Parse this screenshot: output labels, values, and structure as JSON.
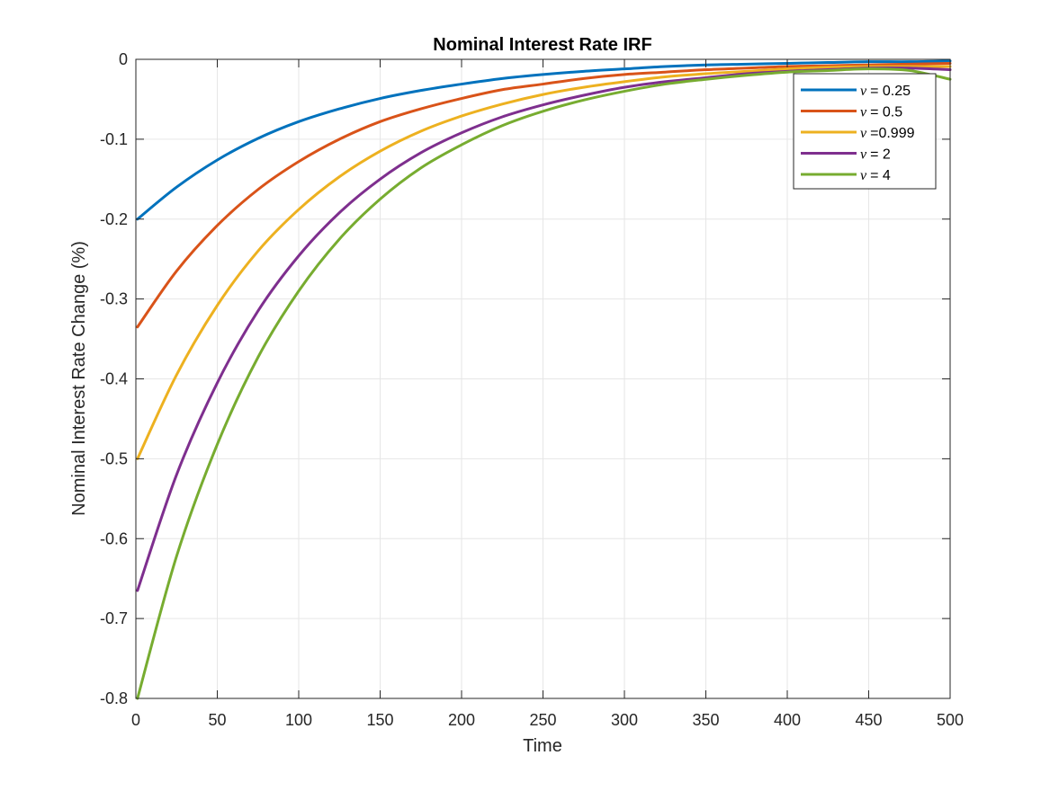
{
  "chart_data": {
    "type": "line",
    "title": "Nominal Interest Rate IRF",
    "xlabel": "Time",
    "ylabel": "Nominal Interest Rate Change (%)",
    "xlim": [
      0,
      500
    ],
    "ylim": [
      -0.8,
      0
    ],
    "xticks": [
      0,
      50,
      100,
      150,
      200,
      250,
      300,
      350,
      400,
      450,
      500
    ],
    "xtick_labels": [
      "0",
      "50",
      "100",
      "150",
      "200",
      "250",
      "300",
      "350",
      "400",
      "450",
      "500"
    ],
    "yticks": [
      0,
      -0.1,
      -0.2,
      -0.3,
      -0.4,
      -0.5,
      -0.6,
      -0.7,
      -0.8
    ],
    "ytick_labels": [
      "0",
      "-0.1",
      "-0.2",
      "-0.3",
      "-0.4",
      "-0.5",
      "-0.6",
      "-0.7",
      "-0.8"
    ],
    "grid": true,
    "legend_position": "top-right",
    "x": [
      1,
      25,
      50,
      75,
      100,
      125,
      150,
      175,
      200,
      225,
      250,
      275,
      300,
      325,
      350,
      375,
      400,
      425,
      450,
      475,
      500
    ],
    "series": [
      {
        "name_prefix": "ν",
        "name_value": "= 0.25",
        "color": "#0072BD",
        "values": [
          -0.2,
          -0.16,
          -0.126,
          -0.099,
          -0.078,
          -0.062,
          -0.049,
          -0.039,
          -0.031,
          -0.024,
          -0.019,
          -0.015,
          -0.012,
          -0.009,
          -0.007,
          -0.006,
          -0.005,
          -0.004,
          -0.003,
          -0.003,
          -0.002
        ]
      },
      {
        "name_prefix": "ν",
        "name_value": "=  0.5",
        "color": "#D95319",
        "values": [
          -0.335,
          -0.265,
          -0.208,
          -0.163,
          -0.128,
          -0.1,
          -0.078,
          -0.062,
          -0.049,
          -0.038,
          -0.031,
          -0.024,
          -0.019,
          -0.016,
          -0.013,
          -0.011,
          -0.009,
          -0.008,
          -0.007,
          -0.006,
          -0.005
        ]
      },
      {
        "name_prefix": "ν",
        "name_value": "=0.999",
        "color": "#EDB120",
        "values": [
          -0.5,
          -0.395,
          -0.308,
          -0.24,
          -0.188,
          -0.147,
          -0.115,
          -0.09,
          -0.071,
          -0.056,
          -0.044,
          -0.035,
          -0.028,
          -0.022,
          -0.018,
          -0.015,
          -0.012,
          -0.01,
          -0.009,
          -0.009,
          -0.009
        ]
      },
      {
        "name_prefix": "ν",
        "name_value": "=    2",
        "color": "#7E2F8E",
        "values": [
          -0.665,
          -0.52,
          -0.405,
          -0.315,
          -0.246,
          -0.192,
          -0.15,
          -0.117,
          -0.092,
          -0.072,
          -0.057,
          -0.045,
          -0.035,
          -0.028,
          -0.023,
          -0.018,
          -0.015,
          -0.013,
          -0.011,
          -0.011,
          -0.013
        ]
      },
      {
        "name_prefix": "ν",
        "name_value": "=    4",
        "color": "#77AC30",
        "values": [
          -0.8,
          -0.622,
          -0.482,
          -0.373,
          -0.29,
          -0.225,
          -0.175,
          -0.136,
          -0.107,
          -0.083,
          -0.065,
          -0.051,
          -0.04,
          -0.031,
          -0.025,
          -0.02,
          -0.016,
          -0.014,
          -0.012,
          -0.014,
          -0.025
        ]
      }
    ]
  }
}
